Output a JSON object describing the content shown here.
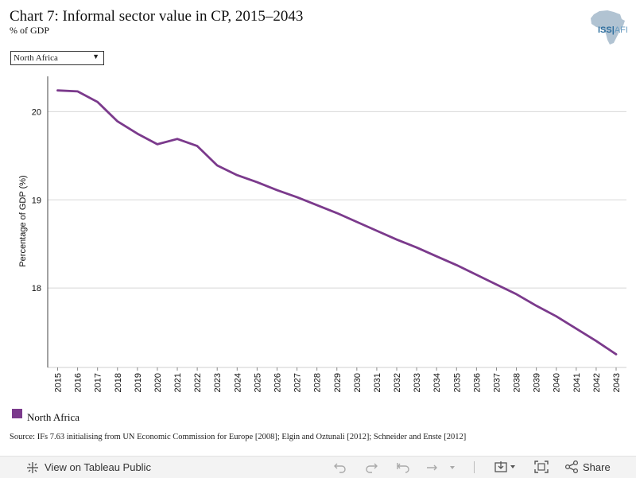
{
  "header": {
    "title": "Chart 7: Informal sector value in CP, 2015–2043",
    "subtitle": "% of GDP"
  },
  "logo": {
    "text_main": "ISS",
    "text_sub": "AFI"
  },
  "filter": {
    "selected": "North Africa"
  },
  "chart_data": {
    "type": "line",
    "title": "Chart 7: Informal sector value in CP, 2015–2043",
    "subtitle": "% of GDP",
    "xlabel": "",
    "ylabel": "Percentage of GDP (%)",
    "ylim": [
      17.1,
      20.4
    ],
    "yticks": [
      18,
      19,
      20
    ],
    "grid": true,
    "legend_position": "bottom-left",
    "x": [
      "2015",
      "2016",
      "2017",
      "2018",
      "2019",
      "2020",
      "2021",
      "2022",
      "2023",
      "2024",
      "2025",
      "2026",
      "2027",
      "2028",
      "2029",
      "2030",
      "2031",
      "2032",
      "2033",
      "2034",
      "2035",
      "2036",
      "2037",
      "2038",
      "2039",
      "2040",
      "2041",
      "2042",
      "2043"
    ],
    "series": [
      {
        "name": "North Africa",
        "color": "#7b3a8c",
        "values": [
          20.24,
          20.23,
          20.11,
          19.89,
          19.75,
          19.63,
          19.69,
          19.61,
          19.39,
          19.28,
          19.2,
          19.11,
          19.03,
          18.94,
          18.85,
          18.75,
          18.65,
          18.55,
          18.46,
          18.36,
          18.26,
          18.15,
          18.04,
          17.93,
          17.8,
          17.68,
          17.54,
          17.4,
          17.25
        ]
      }
    ]
  },
  "legend": {
    "label": "North Africa",
    "color": "#7b3a8c"
  },
  "source": "Source: IFs 7.63 initialising from UN Economic Commission for Europe [2008]; Elgin and Oztunali [2012]; Schneider and Enste [2012]",
  "footer": {
    "view_link": "View on Tableau Public",
    "share_label": "Share",
    "icons": [
      "tableau-logo-icon",
      "undo-icon",
      "redo-icon",
      "revert-icon",
      "refresh-icon",
      "download-icon",
      "fullscreen-icon",
      "share-icon"
    ]
  }
}
